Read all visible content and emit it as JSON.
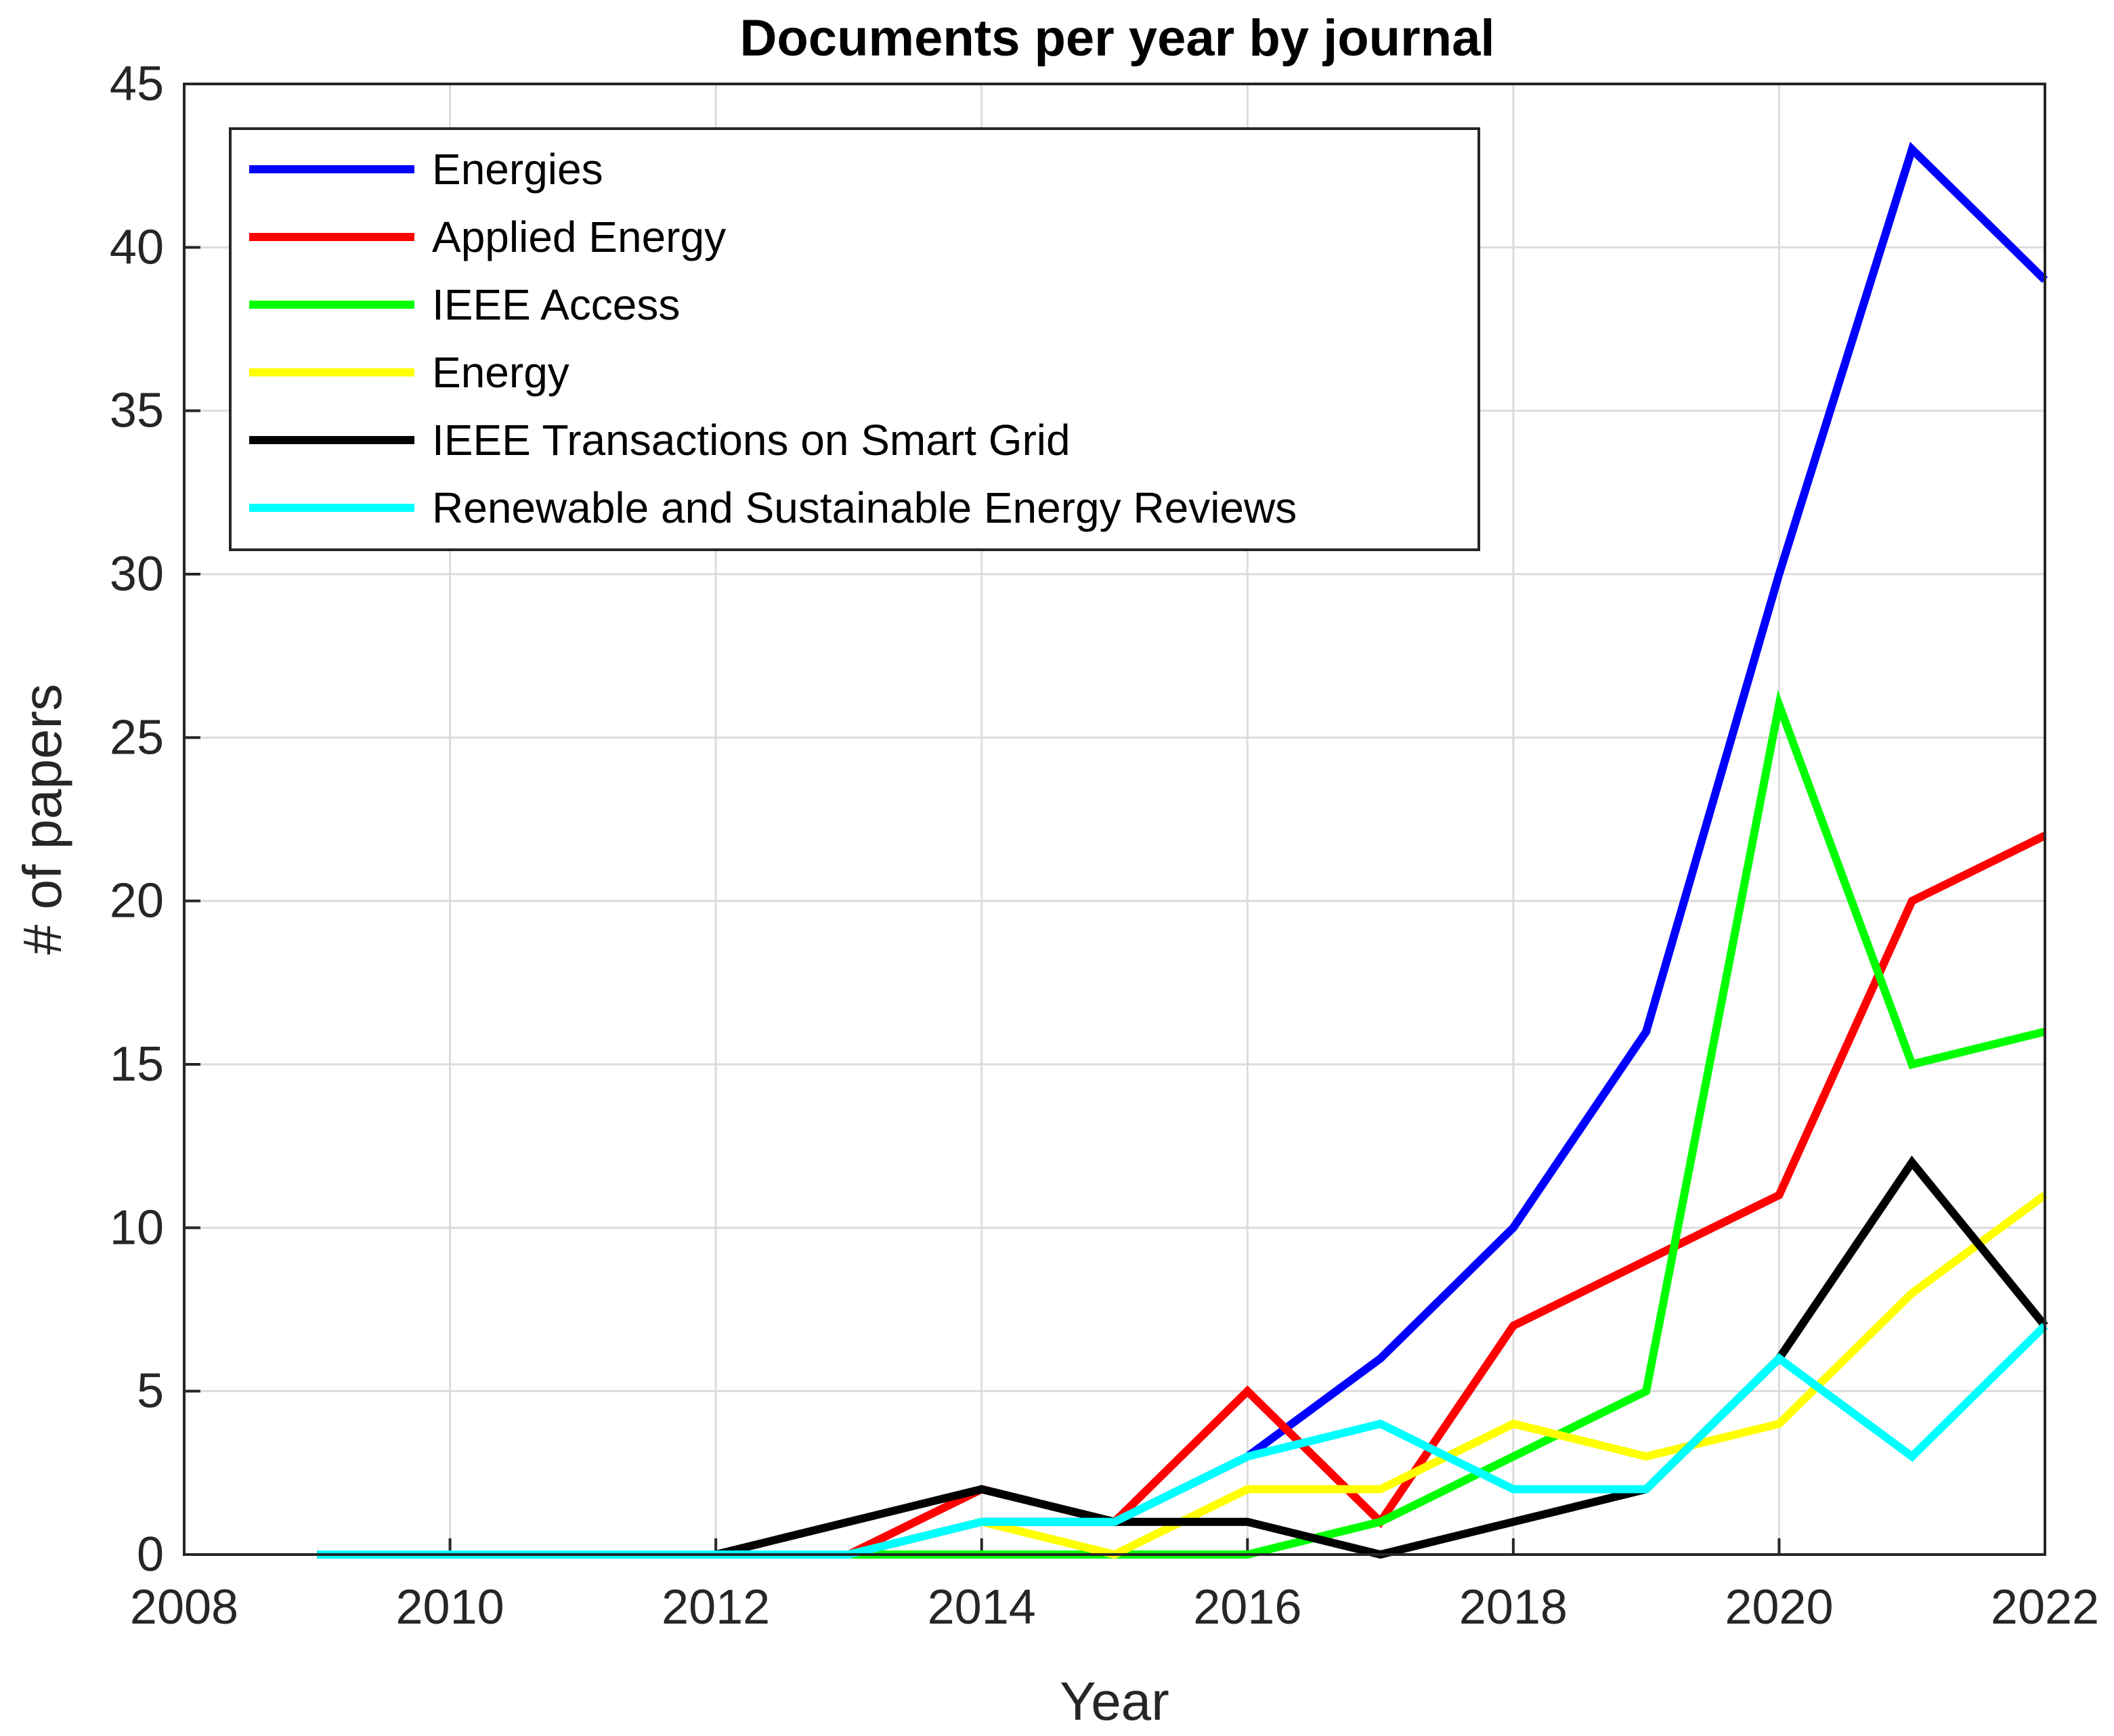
{
  "chart_data": {
    "type": "line",
    "title": "Documents per year by journal",
    "xlabel": "Year",
    "ylabel": "# of papers",
    "xlim": [
      2008,
      2022
    ],
    "ylim": [
      0,
      45
    ],
    "x_ticks": [
      2008,
      2010,
      2012,
      2014,
      2016,
      2018,
      2020,
      2022
    ],
    "y_ticks": [
      0,
      5,
      10,
      15,
      20,
      25,
      30,
      35,
      40,
      45
    ],
    "grid": true,
    "legend_position": "top-left",
    "x": [
      2009,
      2010,
      2011,
      2012,
      2013,
      2014,
      2015,
      2016,
      2017,
      2018,
      2019,
      2020,
      2021,
      2022
    ],
    "series": [
      {
        "name": "Energies",
        "color": "#0000ff",
        "values": [
          0,
          0,
          0,
          0,
          0,
          1,
          1,
          3,
          6,
          10,
          16,
          30,
          43,
          39
        ]
      },
      {
        "name": "Applied Energy",
        "color": "#ff0000",
        "values": [
          0,
          0,
          0,
          0,
          0,
          2,
          1,
          5,
          1,
          7,
          9,
          11,
          20,
          22
        ]
      },
      {
        "name": "IEEE Access",
        "color": "#00ff00",
        "values": [
          0,
          0,
          0,
          0,
          0,
          0,
          0,
          0,
          1,
          3,
          5,
          26,
          15,
          16
        ]
      },
      {
        "name": "Energy",
        "color": "#ffff00",
        "values": [
          0,
          0,
          0,
          0,
          0,
          1,
          0,
          2,
          2,
          4,
          3,
          4,
          8,
          11
        ]
      },
      {
        "name": "IEEE Transactions on Smart Grid",
        "color": "#000000",
        "values": [
          0,
          0,
          0,
          0,
          1,
          2,
          1,
          1,
          0,
          1,
          2,
          6,
          12,
          7
        ]
      },
      {
        "name": "Renewable and Sustainable Energy Reviews",
        "color": "#00ffff",
        "values": [
          0,
          0,
          0,
          0,
          0,
          1,
          1,
          3,
          4,
          2,
          2,
          6,
          3,
          7
        ]
      }
    ]
  }
}
